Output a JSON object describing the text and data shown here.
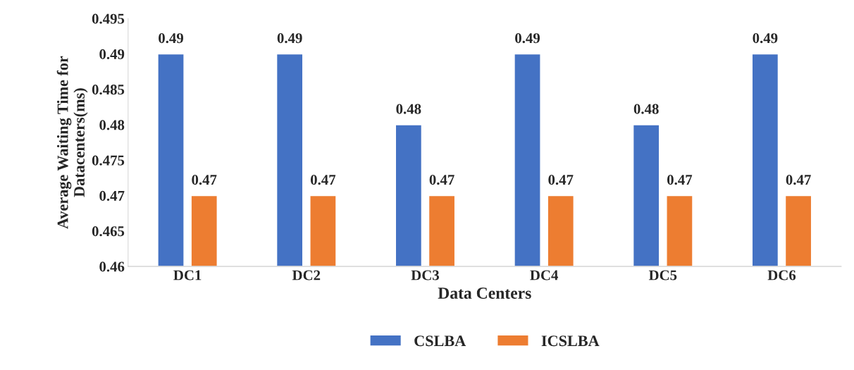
{
  "chart_data": {
    "type": "bar",
    "xlabel": "Data Centers",
    "ylabel": "Average Waiting Time for Datacenters(ms)",
    "categories": [
      "DC1",
      "DC2",
      "DC3",
      "DC4",
      "DC5",
      "DC6"
    ],
    "series": [
      {
        "name": "CSLBA",
        "color": "#4472c4",
        "values": [
          0.49,
          0.49,
          0.48,
          0.49,
          0.48,
          0.49
        ]
      },
      {
        "name": "ICSLBA",
        "color": "#ed7d31",
        "values": [
          0.47,
          0.47,
          0.47,
          0.47,
          0.47,
          0.47
        ]
      }
    ],
    "ylim": [
      0.46,
      0.495
    ],
    "yticks": [
      0.46,
      0.465,
      0.47,
      0.475,
      0.48,
      0.485,
      0.49,
      0.495
    ],
    "data_labels": true,
    "grid": false,
    "legend": "bottom"
  }
}
